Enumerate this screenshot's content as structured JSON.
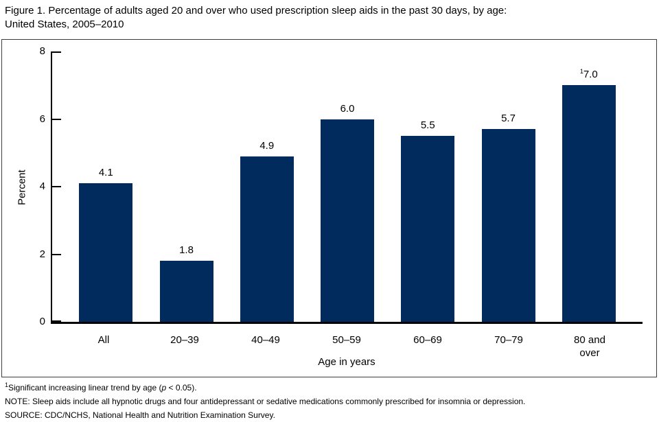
{
  "figure": {
    "title_line1": "Figure 1. Percentage of adults aged 20 and over who used prescription sleep aids in the past 30 days, by age:",
    "title_line2": "United States, 2005–2010"
  },
  "chart_data": {
    "type": "bar",
    "title": "Figure 1. Percentage of adults aged 20 and over who used prescription sleep aids in the past 30 days, by age: United States, 2005–2010",
    "categories": [
      "All",
      "20–39",
      "40–49",
      "50–59",
      "60–69",
      "70–79",
      "80 and\nover"
    ],
    "values": [
      4.1,
      1.8,
      4.9,
      6.0,
      5.5,
      5.7,
      7.0
    ],
    "value_labels": [
      {
        "sup": "",
        "text": "4.1"
      },
      {
        "sup": "",
        "text": "1.8"
      },
      {
        "sup": "",
        "text": "4.9"
      },
      {
        "sup": "",
        "text": "6.0"
      },
      {
        "sup": "",
        "text": "5.5"
      },
      {
        "sup": "",
        "text": "5.7"
      },
      {
        "sup": "1",
        "text": "7.0"
      }
    ],
    "xlabel": "Age in years",
    "ylabel": "Percent",
    "ylim": [
      0,
      8
    ],
    "yticks": [
      0,
      2,
      4,
      6,
      8
    ],
    "bar_color": "#002b5c",
    "grid": false,
    "legend": false
  },
  "footnotes": {
    "note1": {
      "sup": "1",
      "pre": "Significant increasing linear trend by age (",
      "italic": "p",
      "post": " < 0.05)."
    },
    "note2": "NOTE: Sleep aids include all hypnotic drugs and four antidepressant or sedative medications commonly prescribed for insomnia or depression.",
    "note3": "SOURCE: CDC/NCHS, National Health and Nutrition Examination Survey."
  }
}
